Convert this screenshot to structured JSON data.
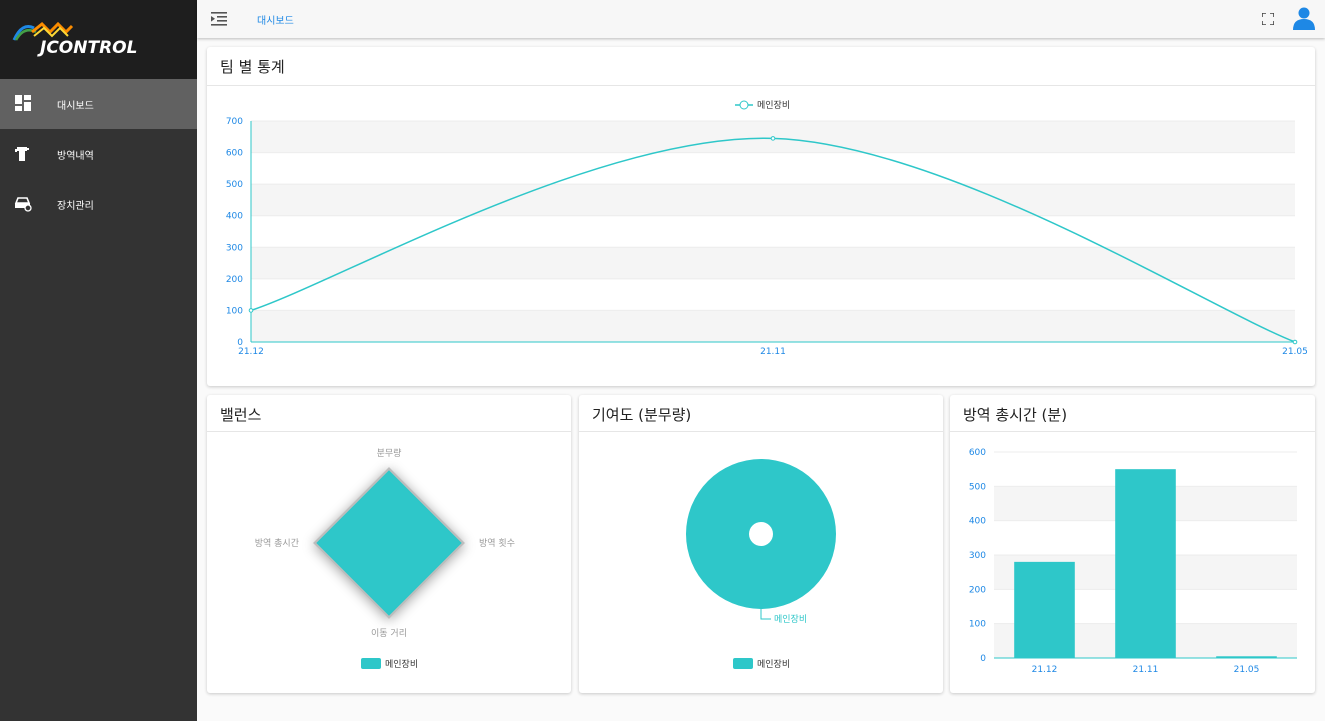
{
  "app": {
    "name": "JCONTROL"
  },
  "sidebar": {
    "items": [
      {
        "label": "대시보드",
        "icon": "dashboard-icon",
        "active": true
      },
      {
        "label": "방역내역",
        "icon": "spray-icon",
        "active": false
      },
      {
        "label": "장치관리",
        "icon": "car-settings-icon",
        "active": false
      }
    ]
  },
  "topbar": {
    "breadcrumb": "대시보드",
    "menu_icon": "menu-collapse-icon",
    "fullscreen_icon": "fullscreen-icon",
    "account_icon": "account-icon"
  },
  "colors": {
    "accent": "#2ec7c9",
    "link": "#1e88e5",
    "sidebar": "#333333",
    "sidebar_active": "#616161"
  },
  "cards": {
    "team_stats": {
      "title": "팀 별 통계"
    },
    "balance": {
      "title": "밸런스"
    },
    "contribution": {
      "title": "기여도 (분무량)"
    },
    "total_time": {
      "title": "방역 총시간 (분)"
    }
  },
  "chart_data": [
    {
      "type": "line",
      "title": "팀 별 통계",
      "legend": "top-center",
      "categories": [
        "21.12",
        "21.11",
        "21.05"
      ],
      "series": [
        {
          "name": "메인장비",
          "values": [
            100,
            645,
            0
          ]
        }
      ],
      "ylim": [
        0,
        700
      ],
      "yticks": [
        0,
        100,
        200,
        300,
        400,
        500,
        600,
        700
      ],
      "smooth": true
    },
    {
      "type": "radar",
      "title": "밸런스",
      "legend": "bottom-center",
      "indicators": [
        "분무량",
        "방역 횟수",
        "이동 거리",
        "방역 총시간"
      ],
      "series": [
        {
          "name": "메인장비",
          "values": [
            1,
            1,
            1,
            1
          ]
        }
      ]
    },
    {
      "type": "pie",
      "title": "기여도 (분무량)",
      "legend": "bottom-center",
      "slices": [
        {
          "name": "메인장비",
          "value": 1
        }
      ]
    },
    {
      "type": "bar",
      "title": "방역 총시간 (분)",
      "categories": [
        "21.12",
        "21.11",
        "21.05"
      ],
      "values": [
        280,
        550,
        5
      ],
      "ylim": [
        0,
        600
      ],
      "yticks": [
        0,
        100,
        200,
        300,
        400,
        500,
        600
      ]
    }
  ]
}
